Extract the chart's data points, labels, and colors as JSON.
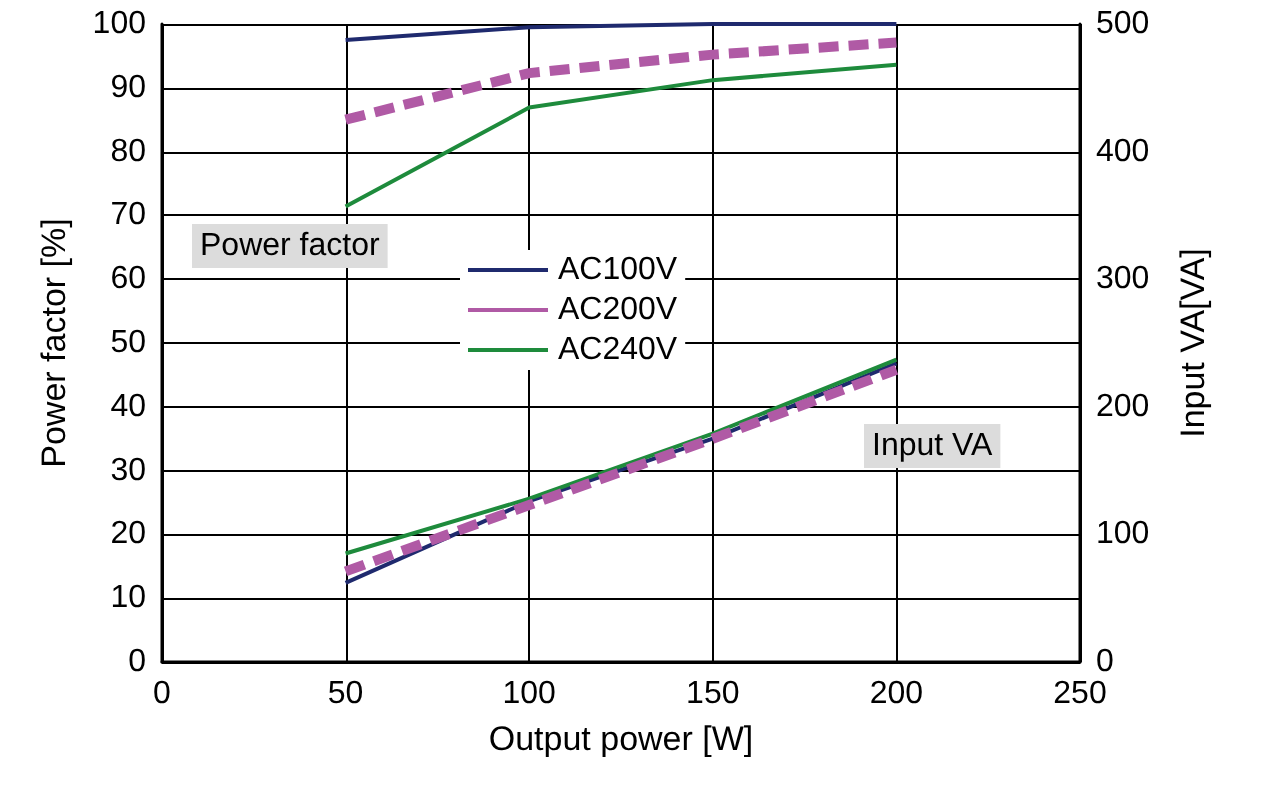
{
  "chart_data": {
    "type": "line",
    "xlabel": "Output power [W]",
    "ylabel": "Power factor [%]",
    "y2label": "Input VA[VA]",
    "x": [
      50,
      100,
      150,
      200
    ],
    "series": [
      {
        "name": "AC100V",
        "color": "#1f2a6e",
        "values": [
          97.5,
          99.5,
          100,
          100
        ]
      },
      {
        "name": "AC200V",
        "color": "#b05aa5",
        "values": [
          85,
          92.3,
          95.2,
          97.1
        ],
        "line_style": "dashed"
      },
      {
        "name": "AC240V",
        "color": "#1e8b3c",
        "values": [
          71.4,
          86.9,
          91.2,
          93.6
        ]
      },
      {
        "color": "#1f2a6e",
        "values": [
          62,
          126,
          175,
          234
        ],
        "axis": "y2"
      },
      {
        "color": "#b05aa5",
        "values": [
          71,
          123,
          175,
          229
        ],
        "axis": "y2",
        "line_style": "dashed"
      },
      {
        "color": "#1e8b3c",
        "values": [
          85,
          128,
          179,
          237
        ],
        "axis": "y2"
      }
    ],
    "xlim": [
      0,
      250
    ],
    "xticks": [
      0,
      50,
      100,
      150,
      200,
      250
    ],
    "ylim": [
      0,
      100
    ],
    "yticks": [
      0,
      10,
      20,
      30,
      40,
      50,
      60,
      70,
      80,
      90,
      100
    ],
    "y2lim": [
      0,
      500
    ],
    "y2ticks": [
      0,
      100,
      200,
      300,
      400,
      500
    ],
    "annotations": [
      "Power factor",
      "Input VA"
    ],
    "grid": true,
    "legend": "center",
    "marker": "none",
    "line_style": "solid"
  }
}
